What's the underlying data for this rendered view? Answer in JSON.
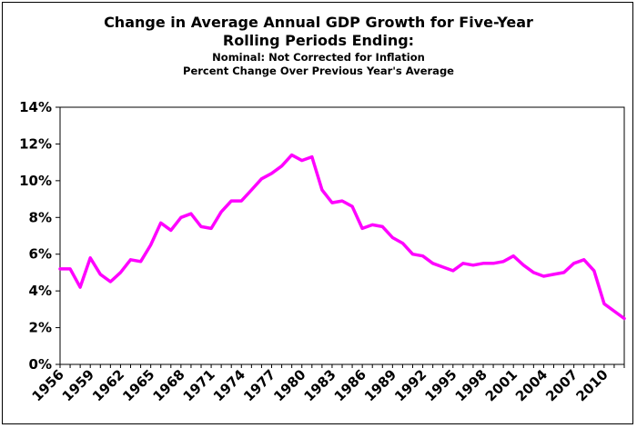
{
  "chart_data": {
    "type": "line",
    "title": "Change in Average Annual GDP Growth for Five-Year",
    "title_line2": "Rolling Periods Ending:",
    "subtitle": "Nominal: Not Corrected for Inflation",
    "subtitle_line2": "Percent Change Over Previous Year's Average",
    "xlabel": "",
    "ylabel": "",
    "ylim": [
      0,
      14
    ],
    "xlim": [
      1956,
      2012
    ],
    "yticks": [
      "0%",
      "2%",
      "4%",
      "6%",
      "8%",
      "10%",
      "12%",
      "14%"
    ],
    "xticks": [
      "1956",
      "1959",
      "1962",
      "1965",
      "1968",
      "1971",
      "1974",
      "1977",
      "1980",
      "1983",
      "1986",
      "1989",
      "1992",
      "1995",
      "1998",
      "2001",
      "2004",
      "2007",
      "2010"
    ],
    "grid": false,
    "line_color": "#ff00ff",
    "series": [
      {
        "x": [
          1956,
          1957,
          1958,
          1959,
          1960,
          1961,
          1962,
          1963,
          1964,
          1965,
          1966,
          1967,
          1968,
          1969,
          1970,
          1971,
          1972,
          1973,
          1974,
          1975,
          1976,
          1977,
          1978,
          1979,
          1980,
          1981,
          1982,
          1983,
          1984,
          1985,
          1986,
          1987,
          1988,
          1989,
          1990,
          1991,
          1992,
          1993,
          1994,
          1995,
          1996,
          1997,
          1998,
          1999,
          2000,
          2001,
          2002,
          2003,
          2004,
          2005,
          2006,
          2007,
          2008,
          2009,
          2010,
          2011,
          2012
        ],
        "values": [
          5.2,
          5.2,
          4.2,
          5.8,
          4.9,
          4.5,
          5.0,
          5.7,
          5.6,
          6.5,
          7.7,
          7.3,
          8.0,
          8.2,
          7.5,
          7.4,
          8.3,
          8.9,
          8.9,
          9.5,
          10.1,
          10.4,
          10.8,
          11.4,
          11.1,
          11.3,
          9.5,
          8.8,
          8.9,
          8.6,
          7.4,
          7.6,
          7.5,
          6.9,
          6.6,
          6.0,
          5.9,
          5.5,
          5.3,
          5.1,
          5.5,
          5.4,
          5.5,
          5.5,
          5.6,
          5.9,
          5.4,
          5.0,
          4.8,
          4.9,
          5.0,
          5.5,
          5.7,
          5.1,
          3.3,
          2.9,
          2.5
        ]
      }
    ]
  }
}
